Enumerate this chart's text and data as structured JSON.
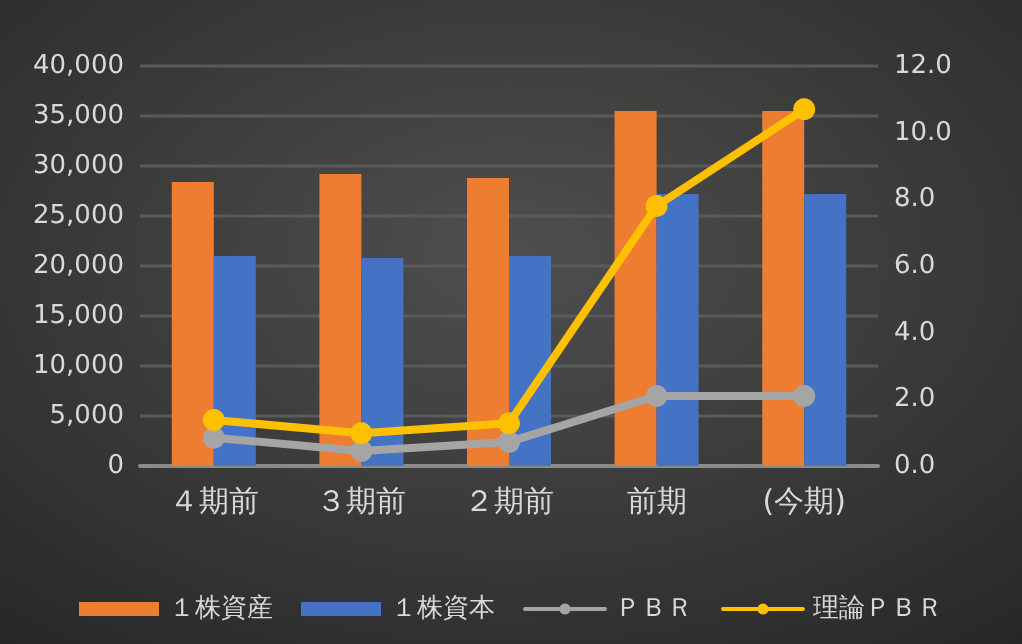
{
  "chart_data": {
    "type": "bar",
    "categories": [
      "４期前",
      "３期前",
      "２期前",
      "前期",
      "(今期)"
    ],
    "series": [
      {
        "name": "１株資産",
        "color": "#ed7d31",
        "values": [
          28400,
          29200,
          28800,
          35500,
          35500
        ]
      },
      {
        "name": "１株資本",
        "color": "#4472c4",
        "values": [
          21000,
          20800,
          21000,
          27200,
          27200
        ]
      },
      {
        "name": "ＰＢＲ",
        "type": "line",
        "axis": "y2",
        "color": "#a5a5a5",
        "values": [
          0.85,
          0.45,
          0.72,
          2.1,
          2.1
        ]
      },
      {
        "name": "理論ＰＢＲ",
        "type": "line",
        "axis": "y2",
        "color": "#ffc000",
        "values": [
          1.38,
          0.98,
          1.28,
          7.8,
          10.7
        ]
      }
    ],
    "ylim": [
      0,
      40000
    ],
    "yticks": [
      0,
      {
        "value": 5000,
        "label": "5,000"
      },
      {
        "value": 10000,
        "label": "10,000"
      },
      {
        "value": 15000,
        "label": "15,000"
      },
      {
        "value": 20000,
        "label": "20,000"
      },
      {
        "value": 25000,
        "label": "25,000"
      },
      {
        "value": 30000,
        "label": "30,000"
      },
      {
        "value": 35000,
        "label": "35,000"
      },
      {
        "value": 40000,
        "label": "40,000"
      }
    ],
    "y2lim": [
      0,
      12
    ],
    "y2ticks": [
      {
        "value": 0,
        "label": "0.0"
      },
      {
        "value": 2,
        "label": "2.0"
      },
      {
        "value": 4,
        "label": "4.0"
      },
      {
        "value": 6,
        "label": "6.0"
      },
      {
        "value": 8,
        "label": "8.0"
      },
      {
        "value": 10,
        "label": "10.0"
      },
      {
        "value": 12,
        "label": "12.0"
      }
    ],
    "grid": "y",
    "legend": "bottom",
    "marker": "circle"
  }
}
